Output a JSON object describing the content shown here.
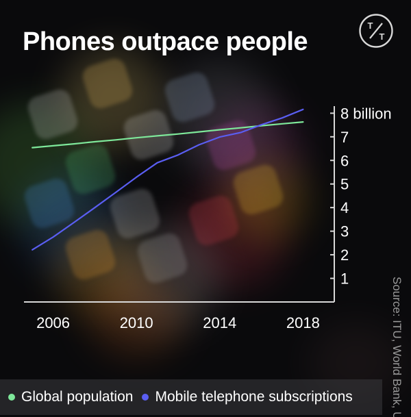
{
  "title": "Phones outpace people",
  "source": "Source: ITU, World Bank, UN",
  "logo": {
    "icon": "tt-logo-icon",
    "text_top": "T",
    "text_bottom": "T"
  },
  "legend": [
    {
      "name": "Global population",
      "color": "#7ee89a"
    },
    {
      "name": "Mobile telephone subscriptions",
      "color": "#5a5ef2"
    }
  ],
  "chart_data": {
    "type": "line",
    "title": "Phones outpace people",
    "xlabel": "",
    "ylabel": "",
    "x_ticks": [
      2006,
      2010,
      2014,
      2018
    ],
    "y_ticks": [
      {
        "value": 1,
        "label": "1"
      },
      {
        "value": 2,
        "label": "2"
      },
      {
        "value": 3,
        "label": "3"
      },
      {
        "value": 4,
        "label": "4"
      },
      {
        "value": 5,
        "label": "5"
      },
      {
        "value": 6,
        "label": "6"
      },
      {
        "value": 7,
        "label": "7"
      },
      {
        "value": 8,
        "label": "8 billion"
      }
    ],
    "xlim": [
      2004.6,
      2019.5
    ],
    "ylim": [
      0,
      8.3
    ],
    "grid": false,
    "series": [
      {
        "name": "Global population",
        "color": "#7ee89a",
        "x": [
          2005,
          2006,
          2007,
          2008,
          2009,
          2010,
          2011,
          2012,
          2013,
          2014,
          2015,
          2016,
          2017,
          2018
        ],
        "values": [
          6.54,
          6.62,
          6.7,
          6.79,
          6.87,
          6.96,
          7.04,
          7.12,
          7.21,
          7.3,
          7.38,
          7.47,
          7.55,
          7.63
        ]
      },
      {
        "name": "Mobile telephone subscriptions",
        "color": "#5a5ef2",
        "x": [
          2005,
          2006,
          2007,
          2008,
          2009,
          2010,
          2011,
          2012,
          2013,
          2014,
          2015,
          2016,
          2017,
          2018
        ],
        "values": [
          2.21,
          2.75,
          3.37,
          4.0,
          4.64,
          5.29,
          5.9,
          6.23,
          6.66,
          6.99,
          7.18,
          7.51,
          7.8,
          8.16
        ]
      }
    ]
  }
}
